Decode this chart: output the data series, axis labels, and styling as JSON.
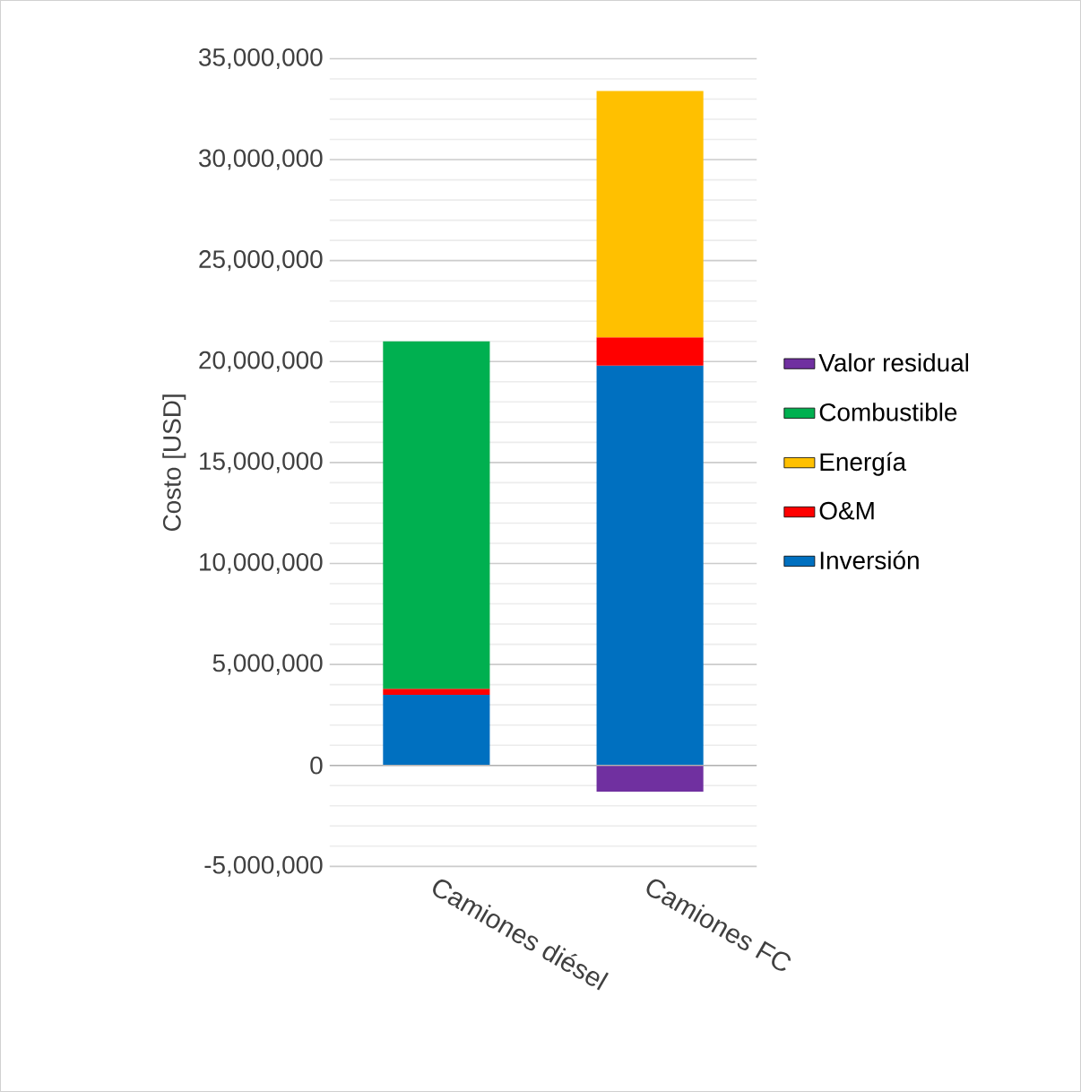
{
  "chart_data": {
    "type": "bar",
    "stacked": true,
    "ylabel": "Costo [USD]",
    "categories": [
      "Camiones diésel",
      "Camiones FC"
    ],
    "series": [
      {
        "name": "Inversión",
        "color": "#0070c0",
        "values": [
          3500000,
          19800000
        ]
      },
      {
        "name": "O&M",
        "color": "#ff0000",
        "values": [
          300000,
          1400000
        ]
      },
      {
        "name": "Energía",
        "color": "#ffc000",
        "values": [
          0,
          12200000
        ]
      },
      {
        "name": "Combustible",
        "color": "#00b050",
        "values": [
          17200000,
          0
        ]
      },
      {
        "name": "Valor residual",
        "color": "#7030a0",
        "values": [
          0,
          -1300000
        ]
      }
    ],
    "ylim": [
      -5000000,
      35000000
    ],
    "yticks": [
      {
        "value": -5000000,
        "label": "-5,000,000"
      },
      {
        "value": 0,
        "label": "0"
      },
      {
        "value": 5000000,
        "label": "5,000,000"
      },
      {
        "value": 10000000,
        "label": "10,000,000"
      },
      {
        "value": 15000000,
        "label": "15,000,000"
      },
      {
        "value": 20000000,
        "label": "20,000,000"
      },
      {
        "value": 25000000,
        "label": "25,000,000"
      },
      {
        "value": 30000000,
        "label": "30,000,000"
      },
      {
        "value": 35000000,
        "label": "35,000,000"
      }
    ],
    "grid": true,
    "legend": "right"
  }
}
